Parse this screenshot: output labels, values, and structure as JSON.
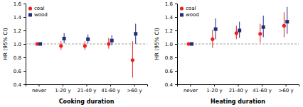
{
  "chart_data": [
    {
      "type": "scatter",
      "x_label": "Cooking duration",
      "y_label": "HR (95% CI)",
      "categories": [
        "never",
        "1-20 y",
        "21-40 y",
        "41-60 y",
        ">60 y"
      ],
      "series": [
        {
          "name": "coal",
          "color": "#e82020",
          "marker": "circle",
          "values": [
            1.0,
            0.97,
            0.97,
            1.0,
            0.76
          ],
          "lower": [
            1.0,
            0.91,
            0.91,
            0.93,
            0.5
          ],
          "upper": [
            1.0,
            1.04,
            1.04,
            1.09,
            1.04
          ]
        },
        {
          "name": "wood",
          "color": "#1f2d7a",
          "marker": "square",
          "values": [
            1.0,
            1.08,
            1.07,
            1.05,
            1.15
          ],
          "lower": [
            1.0,
            1.01,
            1.01,
            0.98,
            1.0
          ],
          "upper": [
            1.0,
            1.16,
            1.14,
            1.13,
            1.3
          ]
        }
      ],
      "ref_line": 1.0,
      "ylim": [
        0.4,
        1.6
      ],
      "yticks": [
        0.4,
        0.6,
        0.8,
        {
          "value": 1.0,
          "label": "1.0"
        },
        1.2,
        1.4,
        1.6
      ],
      "grid": false,
      "legend": "upper left"
    },
    {
      "type": "scatter",
      "x_label": "Heating duration",
      "y_label": "HR (95% CI)",
      "categories": [
        "never",
        "1-20 y",
        "21-40 y",
        "41-60 y",
        ">60 y"
      ],
      "series": [
        {
          "name": "coal",
          "color": "#e82020",
          "marker": "circle",
          "values": [
            1.0,
            1.07,
            1.16,
            1.15,
            1.27
          ],
          "lower": [
            1.0,
            0.94,
            1.07,
            1.02,
            1.1
          ],
          "upper": [
            1.0,
            1.21,
            1.27,
            1.3,
            1.47
          ]
        },
        {
          "name": "wood",
          "color": "#1f2d7a",
          "marker": "square",
          "values": [
            1.0,
            1.22,
            1.2,
            1.25,
            1.33
          ],
          "lower": [
            1.0,
            1.07,
            1.09,
            1.1,
            1.15
          ],
          "upper": [
            1.0,
            1.38,
            1.33,
            1.42,
            1.55
          ]
        }
      ],
      "ref_line": 1.0,
      "ylim": [
        0.4,
        1.6
      ],
      "yticks": [
        0.4,
        0.6,
        0.8,
        {
          "value": 1.0,
          "label": "1.0"
        },
        1.2,
        1.4,
        1.6
      ],
      "grid": false,
      "legend": "upper left"
    }
  ]
}
